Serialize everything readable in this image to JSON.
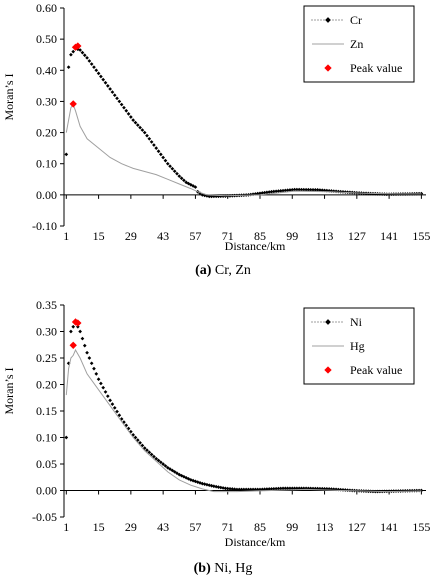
{
  "chart_data": [
    {
      "type": "line",
      "caption_bold": "(a)",
      "caption_rest": " Cr, Zn",
      "xlabel": "Distance/km",
      "ylabel": "Moran’s I",
      "xlim": [
        0,
        157
      ],
      "ylim": [
        -0.1,
        0.6
      ],
      "x_ticks": [
        1,
        15,
        29,
        43,
        57,
        71,
        85,
        99,
        113,
        127,
        141,
        155
      ],
      "y_ticks": [
        -0.1,
        0.0,
        0.1,
        0.2,
        0.3,
        0.4,
        0.5,
        0.6
      ],
      "y_tick_labels": [
        "-0.10",
        "0.00",
        "0.10",
        "0.20",
        "0.30",
        "0.40",
        "0.50",
        "0.60"
      ],
      "legend_position": "top-right",
      "series": [
        {
          "name": "Cr",
          "style": "dotted-markers",
          "color": "#000000",
          "points": [
            [
              1,
              0.13
            ],
            [
              2,
              0.41
            ],
            [
              3,
              0.45
            ],
            [
              5,
              0.47
            ],
            [
              7,
              0.465
            ],
            [
              10,
              0.44
            ],
            [
              15,
              0.39
            ],
            [
              20,
              0.34
            ],
            [
              25,
              0.29
            ],
            [
              30,
              0.24
            ],
            [
              35,
              0.2
            ],
            [
              40,
              0.15
            ],
            [
              45,
              0.1
            ],
            [
              50,
              0.06
            ],
            [
              53,
              0.04
            ],
            [
              57,
              0.025
            ],
            [
              58,
              0.01
            ],
            [
              60,
              0.0
            ],
            [
              63,
              -0.005
            ],
            [
              70,
              -0.004
            ],
            [
              80,
              0.0
            ],
            [
              90,
              0.01
            ],
            [
              100,
              0.017
            ],
            [
              110,
              0.016
            ],
            [
              120,
              0.01
            ],
            [
              130,
              0.005
            ],
            [
              140,
              0.002
            ],
            [
              150,
              0.003
            ],
            [
              155,
              0.004
            ]
          ]
        },
        {
          "name": "Zn",
          "style": "line",
          "color": "#a0a0a0",
          "points": [
            [
              1,
              0.2
            ],
            [
              2,
              0.24
            ],
            [
              3,
              0.28
            ],
            [
              4,
              0.29
            ],
            [
              5,
              0.27
            ],
            [
              7,
              0.22
            ],
            [
              10,
              0.18
            ],
            [
              15,
              0.15
            ],
            [
              20,
              0.12
            ],
            [
              25,
              0.1
            ],
            [
              30,
              0.085
            ],
            [
              35,
              0.075
            ],
            [
              40,
              0.065
            ],
            [
              45,
              0.05
            ],
            [
              50,
              0.035
            ],
            [
              55,
              0.02
            ],
            [
              58,
              0.01
            ],
            [
              62,
              0.0
            ],
            [
              70,
              -0.003
            ],
            [
              85,
              0.0
            ],
            [
              100,
              0.012
            ],
            [
              115,
              0.01
            ],
            [
              130,
              0.005
            ],
            [
              145,
              0.003
            ],
            [
              155,
              0.003
            ]
          ]
        }
      ],
      "peaks": {
        "name": "Peak value",
        "color": "#ff0000",
        "points": [
          [
            4,
            0.292
          ],
          [
            5,
            0.474
          ],
          [
            6,
            0.478
          ]
        ]
      }
    },
    {
      "type": "line",
      "caption_bold": "(b)",
      "caption_rest": " Ni, Hg",
      "xlabel": "Distance/km",
      "ylabel": "Moran’s I",
      "xlim": [
        0,
        157
      ],
      "ylim": [
        -0.05,
        0.35
      ],
      "x_ticks": [
        1,
        15,
        29,
        43,
        57,
        71,
        85,
        99,
        113,
        127,
        141,
        155
      ],
      "y_ticks": [
        -0.05,
        0.0,
        0.05,
        0.1,
        0.15,
        0.2,
        0.25,
        0.3,
        0.35
      ],
      "y_tick_labels": [
        "-0.05",
        "0.00",
        "0.05",
        "0.10",
        "0.15",
        "0.20",
        "0.25",
        "0.30",
        "0.35"
      ],
      "legend_position": "top-right",
      "series": [
        {
          "name": "Ni",
          "style": "dotted-markers",
          "color": "#000000",
          "points": [
            [
              1,
              0.1
            ],
            [
              2,
              0.24
            ],
            [
              3,
              0.3
            ],
            [
              5,
              0.318
            ],
            [
              7,
              0.3
            ],
            [
              10,
              0.26
            ],
            [
              15,
              0.21
            ],
            [
              20,
              0.17
            ],
            [
              25,
              0.135
            ],
            [
              30,
              0.105
            ],
            [
              35,
              0.08
            ],
            [
              40,
              0.06
            ],
            [
              45,
              0.043
            ],
            [
              50,
              0.03
            ],
            [
              55,
              0.02
            ],
            [
              60,
              0.013
            ],
            [
              65,
              0.008
            ],
            [
              70,
              0.004
            ],
            [
              75,
              0.002
            ],
            [
              85,
              0.002
            ],
            [
              95,
              0.004
            ],
            [
              105,
              0.004
            ],
            [
              115,
              0.003
            ],
            [
              125,
              0.0
            ],
            [
              135,
              -0.002
            ],
            [
              145,
              -0.001
            ],
            [
              155,
              0.0
            ]
          ]
        },
        {
          "name": "Hg",
          "style": "line",
          "color": "#a0a0a0",
          "points": [
            [
              1,
              0.18
            ],
            [
              2,
              0.23
            ],
            [
              3,
              0.25
            ],
            [
              4,
              0.255
            ],
            [
              5,
              0.265
            ],
            [
              7,
              0.25
            ],
            [
              10,
              0.22
            ],
            [
              15,
              0.19
            ],
            [
              20,
              0.16
            ],
            [
              25,
              0.13
            ],
            [
              30,
              0.1
            ],
            [
              35,
              0.075
            ],
            [
              40,
              0.055
            ],
            [
              45,
              0.035
            ],
            [
              50,
              0.02
            ],
            [
              55,
              0.01
            ],
            [
              60,
              0.003
            ],
            [
              65,
              -0.002
            ],
            [
              75,
              -0.002
            ],
            [
              90,
              0.0
            ],
            [
              105,
              0.002
            ],
            [
              120,
              0.0
            ],
            [
              140,
              -0.002
            ],
            [
              155,
              -0.001
            ]
          ]
        }
      ],
      "peaks": {
        "name": "Peak value",
        "color": "#ff0000",
        "points": [
          [
            4,
            0.274
          ],
          [
            5,
            0.318
          ],
          [
            6,
            0.316
          ]
        ]
      }
    }
  ]
}
